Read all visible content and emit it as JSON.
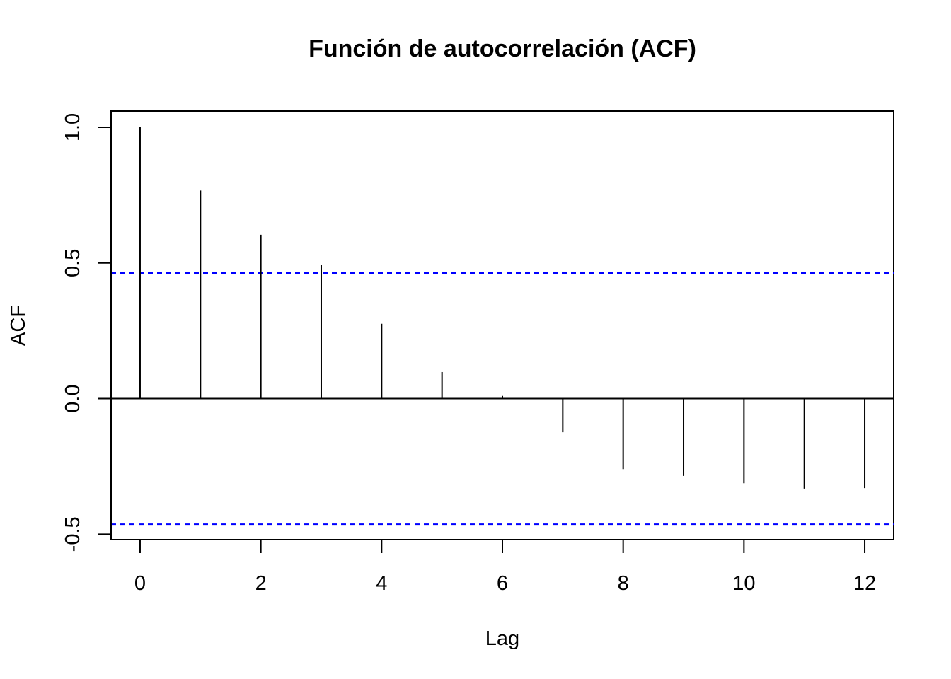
{
  "chart_data": {
    "type": "bar",
    "title": "Función de autocorrelación (ACF)",
    "xlabel": "Lag",
    "ylabel": "ACF",
    "xlim": [
      -0.48,
      12.48
    ],
    "ylim": [
      -0.52,
      1.06
    ],
    "x_ticks": [
      0,
      2,
      4,
      6,
      8,
      10,
      12
    ],
    "y_ticks": [
      -0.5,
      0.0,
      0.5,
      1.0
    ],
    "x_tick_labels": [
      "0",
      "2",
      "4",
      "6",
      "8",
      "10",
      "12"
    ],
    "y_tick_labels": [
      "-0.5",
      "0.0",
      "0.5",
      "1.0"
    ],
    "lags": [
      0,
      1,
      2,
      3,
      4,
      5,
      6,
      7,
      8,
      9,
      10,
      11,
      12
    ],
    "values": [
      1.0,
      0.767,
      0.604,
      0.492,
      0.276,
      0.098,
      0.01,
      -0.124,
      -0.26,
      -0.285,
      -0.312,
      -0.332,
      -0.33
    ],
    "confidence_bound": 0.463,
    "grid": false,
    "colors": {
      "bars": "#000000",
      "confidence_lines": "#0000ff",
      "zero_line": "#000000"
    }
  }
}
